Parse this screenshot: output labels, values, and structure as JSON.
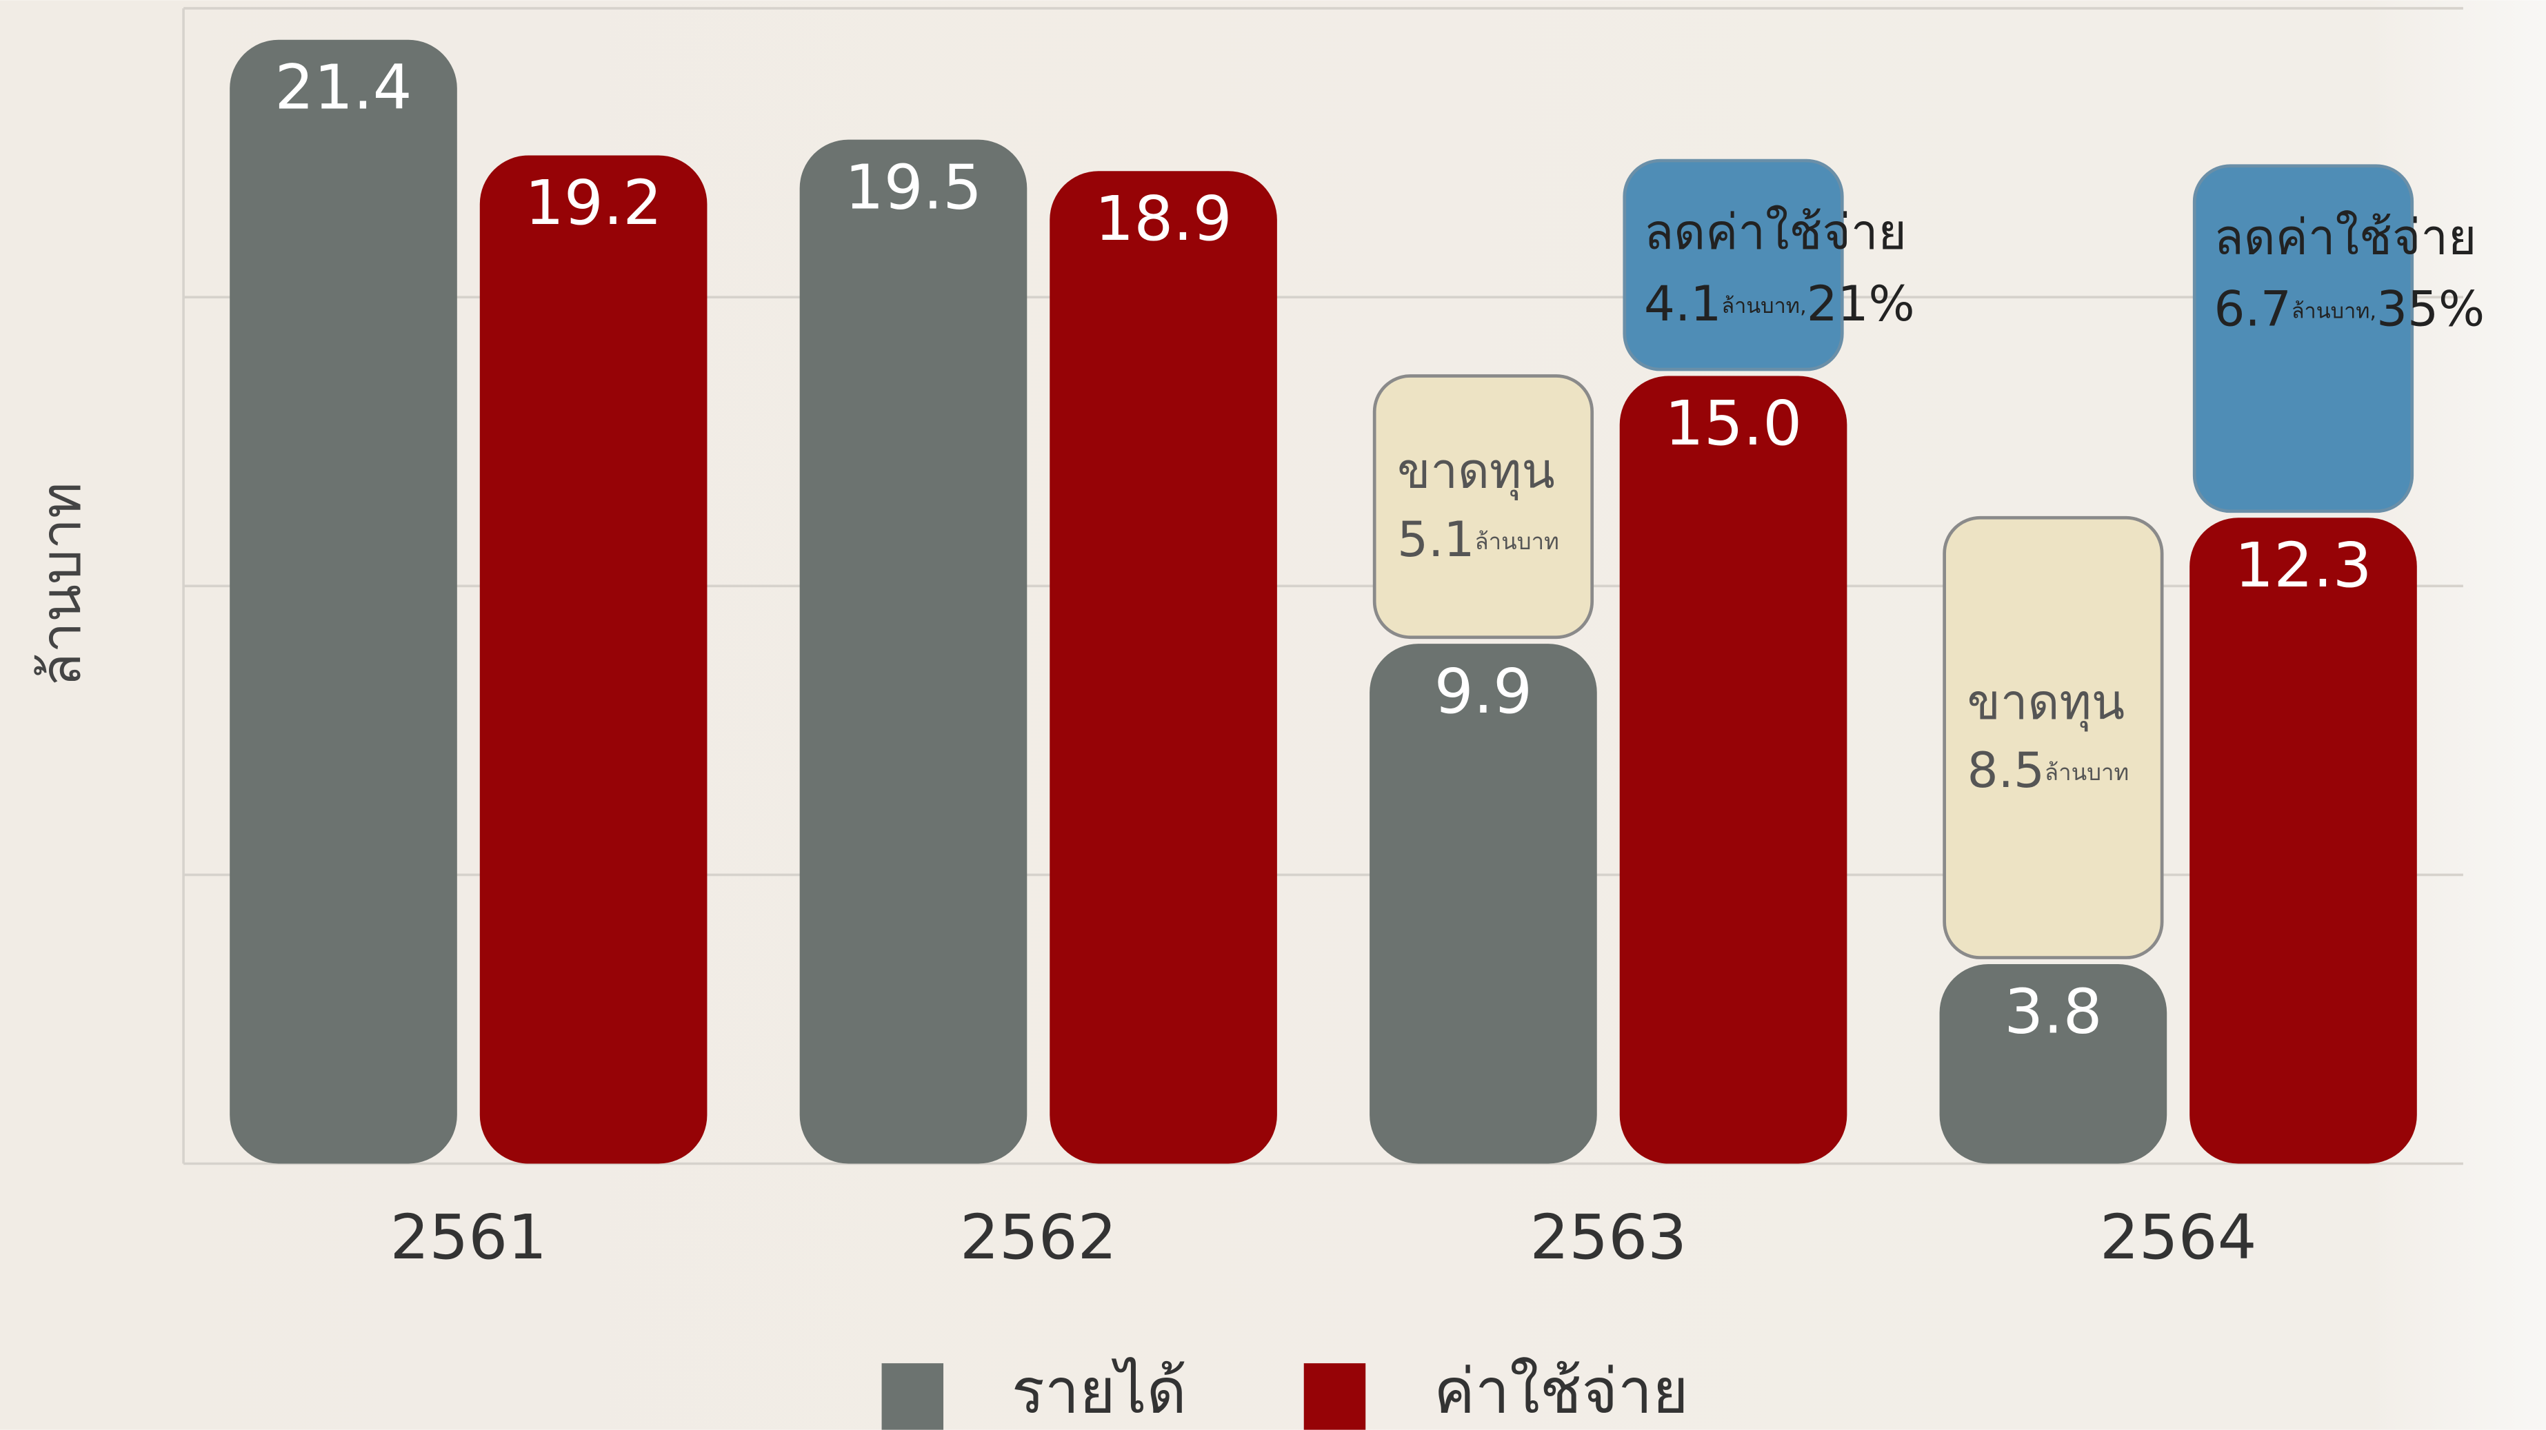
{
  "chart_data": {
    "type": "bar",
    "y_label": "ล้านบาท",
    "categories": [
      "2561",
      "2562",
      "2563",
      "2564"
    ],
    "series": [
      {
        "name": "รายได้",
        "color": "#6c7370",
        "values": [
          21.4,
          19.5,
          9.9,
          3.8
        ],
        "value_labels": [
          "21.4",
          "19.5",
          "9.9",
          "3.8"
        ]
      },
      {
        "name": "ค่าใช้จ่าย",
        "color": "#960306",
        "values": [
          19.2,
          18.9,
          15,
          12.3
        ],
        "value_labels": [
          "19.2",
          "18.9",
          "15.0",
          "12.3"
        ]
      }
    ],
    "ylim": [
      0,
      22
    ],
    "yticks": [
      0,
      5.5,
      11,
      16.5,
      22
    ],
    "grid": true,
    "legend": "bottom",
    "loss_notes": [
      null,
      null,
      {
        "label": "ขาดทุน",
        "value": 5.1,
        "unit": "ล้านบาท",
        "color": "#ede3c4"
      },
      {
        "label": "ขาดทุน",
        "value": 8.5,
        "unit": "ล้านบาท",
        "color": "#ede3c4"
      }
    ],
    "saving_notes": [
      null,
      null,
      {
        "label": "ลดค่าใช้จ่าย",
        "value": 4.1,
        "unit": "ล้านบาท,",
        "percent": "21%",
        "color": "#4f8db6"
      },
      {
        "label": "ลดค่าใช้จ่าย",
        "value": 6.7,
        "unit": "ล้านบาท,",
        "percent": "35%",
        "color": "#4f8db6"
      }
    ]
  }
}
